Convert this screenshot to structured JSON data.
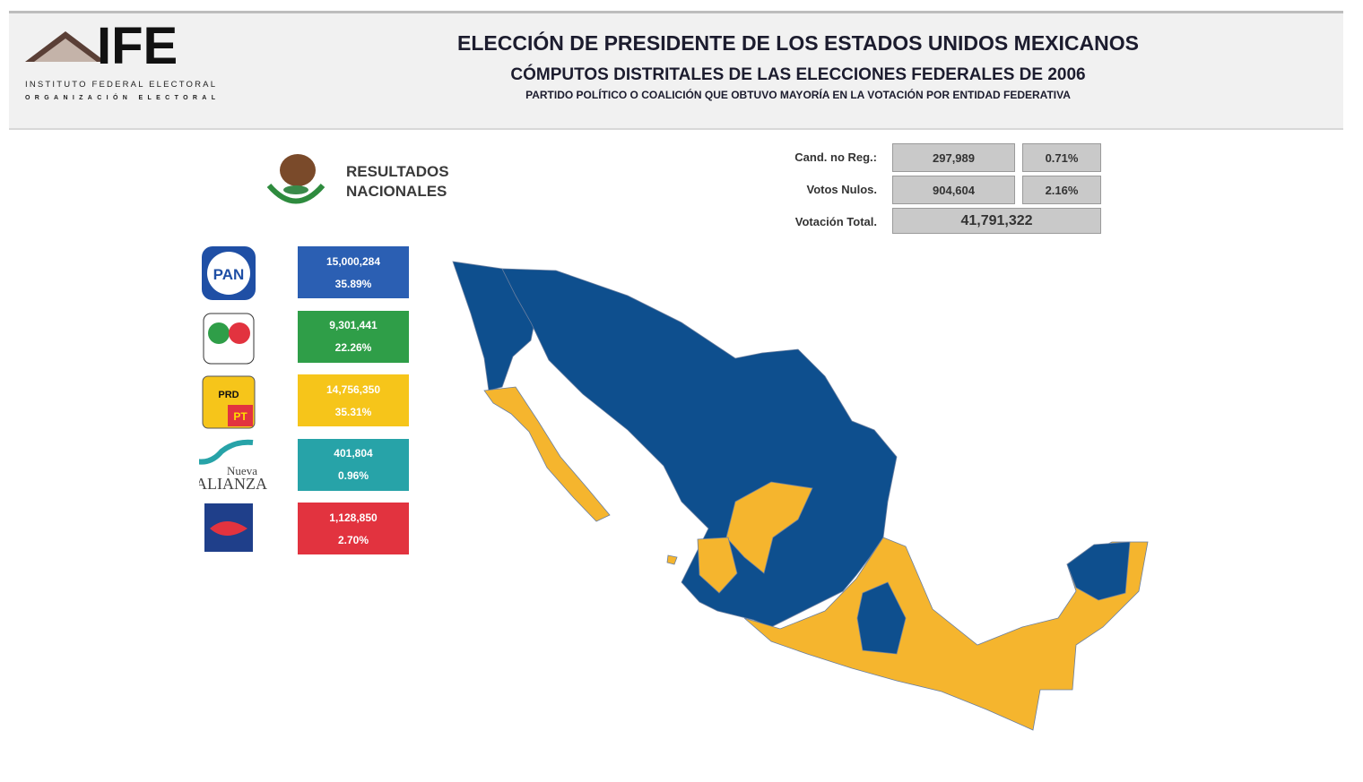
{
  "header": {
    "logo": {
      "acronym": "IFE",
      "line1": "INSTITUTO FEDERAL ELECTORAL",
      "line2": "ORGANIZACIÓN ELECTORAL"
    },
    "title": "ELECCIÓN DE PRESIDENTE DE LOS ESTADOS UNIDOS MEXICANOS",
    "subtitle": "CÓMPUTOS DISTRITALES DE LAS ELECCIONES FEDERALES DE 2006",
    "caption": "PARTIDO POLÍTICO O COALICIÓN QUE OBTUVO MAYORÍA EN LA VOTACIÓN POR ENTIDAD FEDERATIVA"
  },
  "national": {
    "label_lines": [
      "RESULTADOS",
      "NACIONALES"
    ]
  },
  "parties": [
    {
      "logo_text": [
        "PAN"
      ],
      "votes": "15,000,284",
      "percent": "35.89%",
      "color": "#2b5fb3"
    },
    {
      "votes": "9,301,441",
      "percent": "22.26%",
      "color": "#2f9e48"
    },
    {
      "logo_text": [
        "PRD",
        "PT"
      ],
      "votes": "14,756,350",
      "percent": "35.31%",
      "color": "#f6c51a"
    },
    {
      "logo_text": [
        "Nueva",
        "ALIANZA"
      ],
      "votes": "401,804",
      "percent": "0.96%",
      "color": "#27a3a8"
    },
    {
      "votes": "1,128,850",
      "percent": "2.70%",
      "color": "#e2333f"
    }
  ],
  "summary": {
    "rows": [
      {
        "label": "Cand. no Reg.:",
        "votes": "297,989",
        "percent": "0.71%"
      },
      {
        "label": "Votos Nulos.",
        "votes": "904,604",
        "percent": "2.16%"
      }
    ],
    "total": {
      "label": "Votación Total.",
      "votes": "41,791,322"
    }
  }
}
